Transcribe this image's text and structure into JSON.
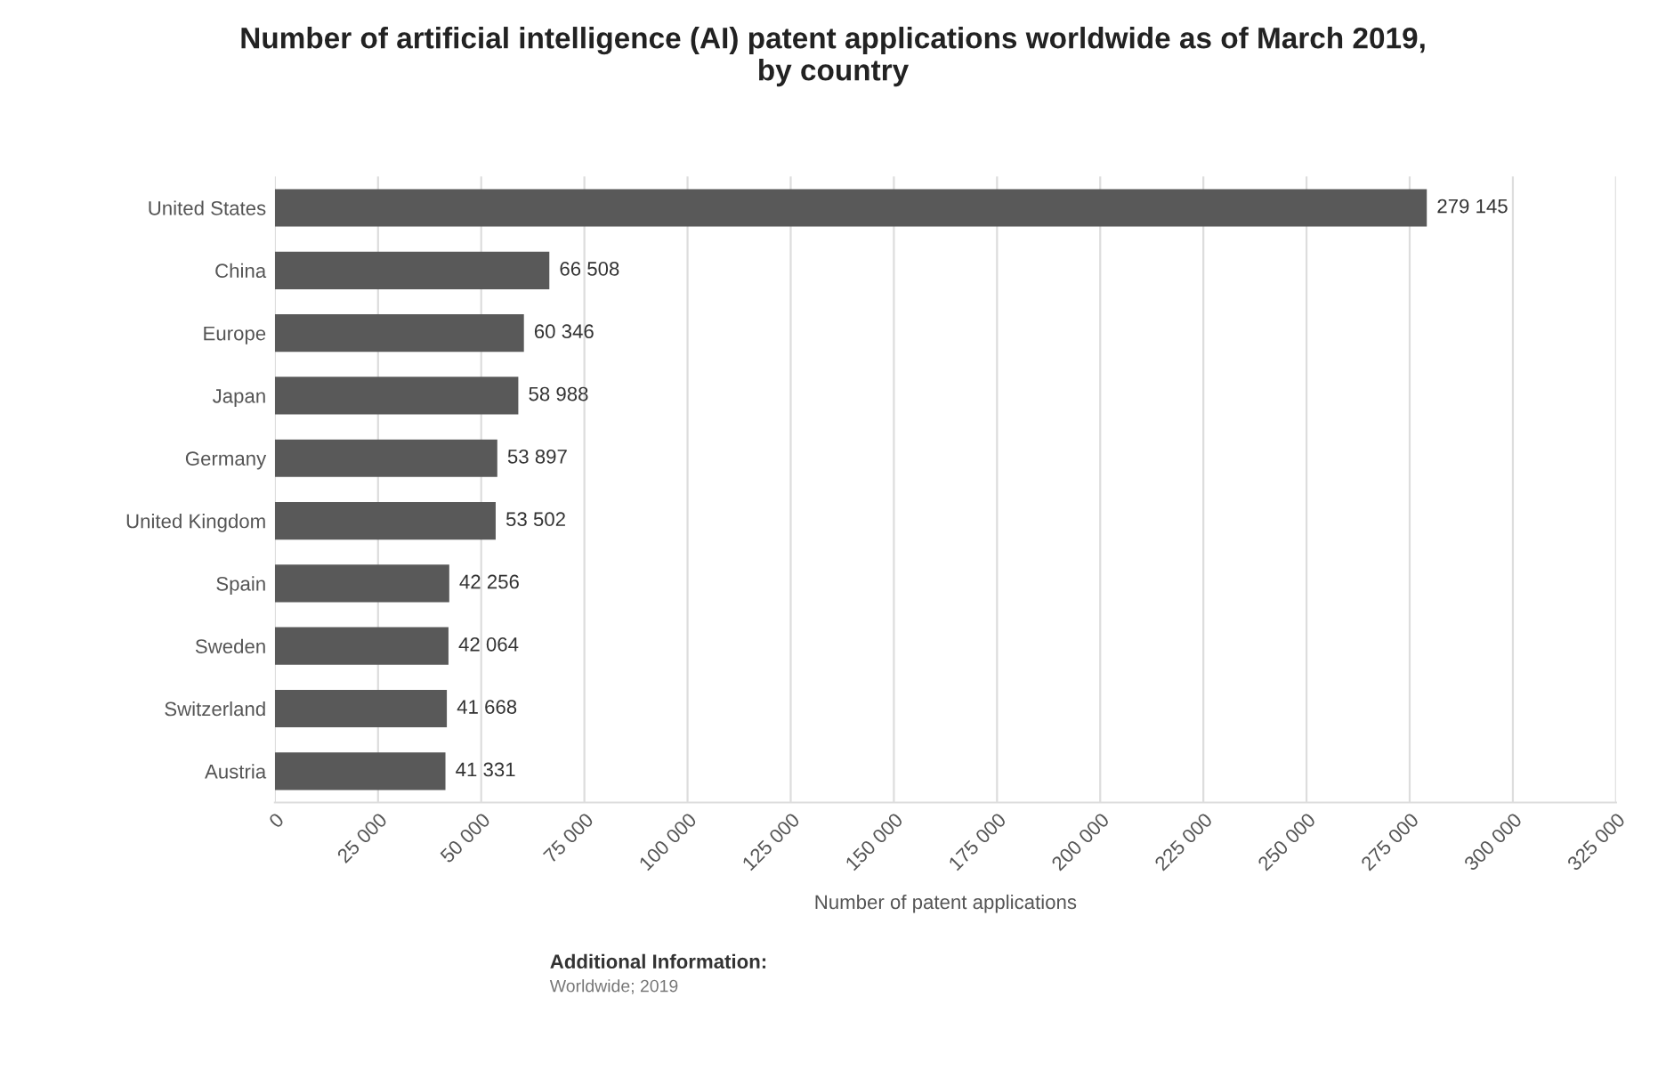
{
  "chart_data": {
    "type": "bar",
    "orientation": "horizontal",
    "title": "Number of artificial intelligence (AI) patent applications worldwide as of March 2019,\nby country",
    "xlabel": "Number of patent applications",
    "categories": [
      "United States",
      "China",
      "Europe",
      "Japan",
      "Germany",
      "United Kingdom",
      "Spain",
      "Sweden",
      "Switzerland",
      "Austria"
    ],
    "values": [
      279145,
      66508,
      60346,
      58988,
      53897,
      53502,
      42256,
      42064,
      41668,
      41331
    ],
    "value_labels": [
      "279 145",
      "66 508",
      "60 346",
      "58 988",
      "53 897",
      "53 502",
      "42 256",
      "42 064",
      "41 668",
      "41 331"
    ],
    "color": "#595959",
    "xlim": [
      0,
      325000
    ],
    "xticks": [
      0,
      {
        "value": 25000,
        "label": "25 000"
      },
      {
        "value": 50000,
        "label": "50 000"
      },
      {
        "value": 75000,
        "label": "75 000"
      },
      {
        "value": 100000,
        "label": "100 000"
      },
      {
        "value": 125000,
        "label": "125 000"
      },
      {
        "value": 150000,
        "label": "150 000"
      },
      {
        "value": 175000,
        "label": "175 000"
      },
      {
        "value": 200000,
        "label": "200 000"
      },
      {
        "value": 225000,
        "label": "225 000"
      },
      {
        "value": 250000,
        "label": "250 000"
      },
      {
        "value": 275000,
        "label": "275 000"
      },
      {
        "value": 300000,
        "label": "300 000"
      },
      {
        "value": 325000,
        "label": "325 000"
      }
    ],
    "grid": "x",
    "annotations": [
      "Additional Information:",
      "Worldwide; 2019"
    ]
  }
}
